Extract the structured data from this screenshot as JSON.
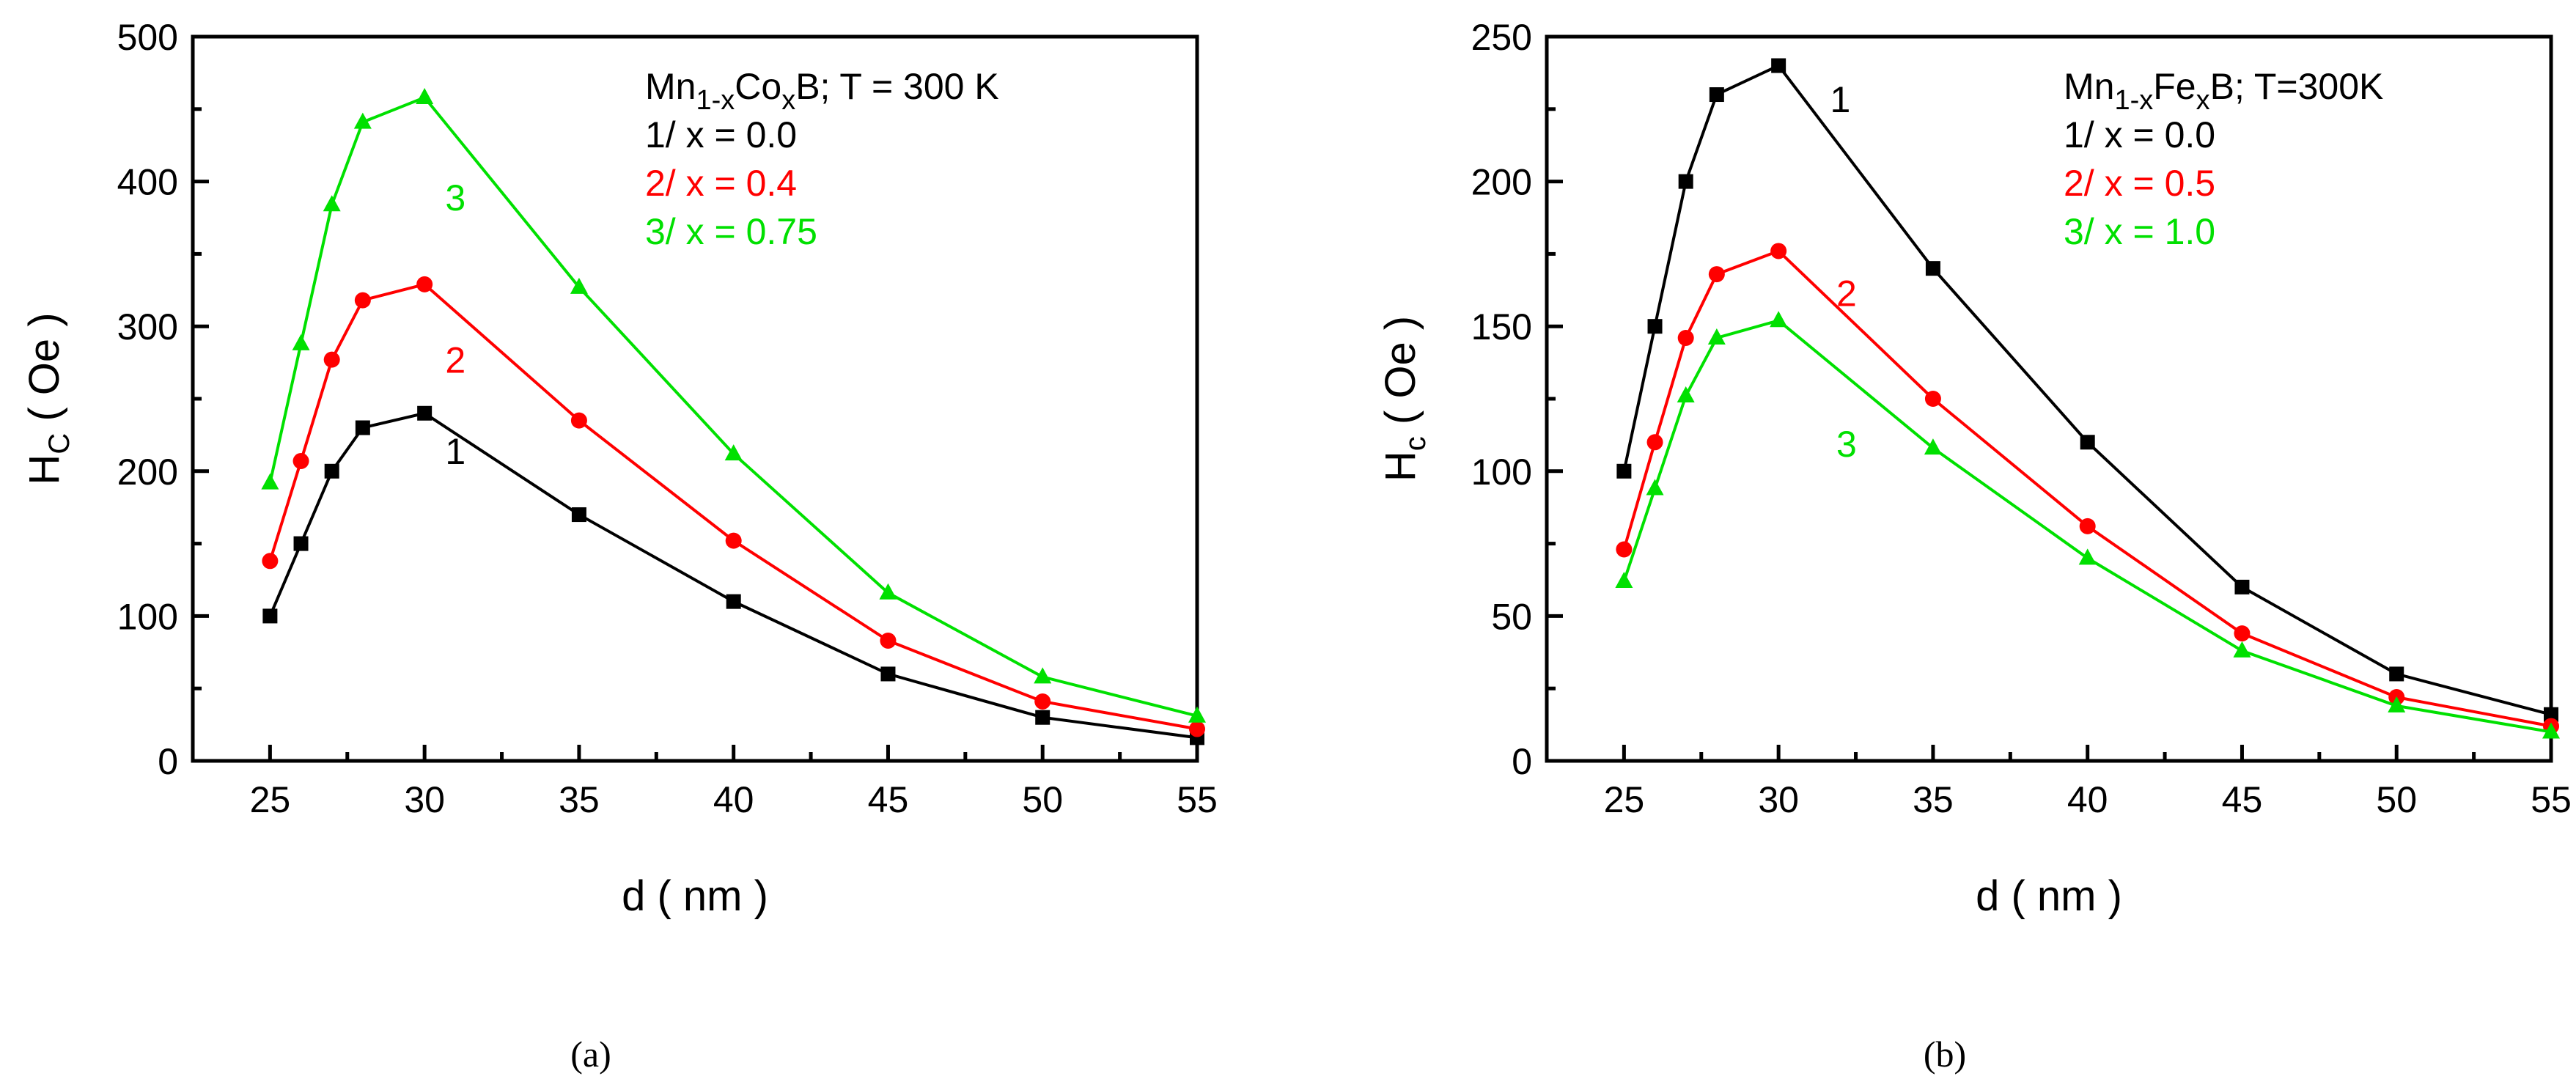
{
  "chart_data": [
    {
      "type": "line",
      "caption": "(a)",
      "xlabel": "d ( nm )",
      "ylabel_main": "H",
      "ylabel_sub": "C",
      "ylabel_rest": " ( Oe )",
      "xlim": [
        22.5,
        55
      ],
      "ylim": [
        0,
        500
      ],
      "xticks": [
        25,
        30,
        35,
        40,
        45,
        50,
        55
      ],
      "yticks": [
        0,
        100,
        200,
        300,
        400,
        500
      ],
      "grid": false,
      "legend_position": "top-right",
      "legend_title": [
        {
          "text": "Mn",
          "sub": false
        },
        {
          "text": "1-x",
          "sub": true
        },
        {
          "text": "Co",
          "sub": false
        },
        {
          "text": "x",
          "sub": true
        },
        {
          "text": "B; T = 300 K",
          "sub": false
        }
      ],
      "legend": [
        {
          "text": "1/ x = 0.0",
          "color": "#000000"
        },
        {
          "text": "2/ x = 0.4",
          "color": "#ff0000"
        },
        {
          "text": "3/ x = 0.75",
          "color": "#00e000"
        }
      ],
      "x": [
        25,
        26,
        27,
        28,
        30,
        35,
        40,
        45,
        50,
        55
      ],
      "series": [
        {
          "label": "1",
          "marker": "square",
          "color": "#000000",
          "values": [
            100,
            150,
            200,
            230,
            240,
            170,
            110,
            60,
            30,
            16
          ],
          "label_at": [
            31,
            205
          ]
        },
        {
          "label": "2",
          "marker": "circle",
          "color": "#ff0000",
          "values": [
            138,
            207,
            277,
            318,
            329,
            235,
            152,
            83,
            41,
            22
          ],
          "label_at": [
            31,
            268
          ]
        },
        {
          "label": "3",
          "marker": "triangle",
          "color": "#00e000",
          "values": [
            192,
            288,
            384,
            441,
            458,
            327,
            212,
            116,
            58,
            31
          ],
          "label_at": [
            31,
            380
          ]
        }
      ]
    },
    {
      "type": "line",
      "caption": "(b)",
      "xlabel": "d ( nm )",
      "ylabel_main": "H",
      "ylabel_sub": "c",
      "ylabel_rest": " ( Oe )",
      "xlim": [
        22.5,
        55
      ],
      "ylim": [
        0,
        250
      ],
      "xticks": [
        25,
        30,
        35,
        40,
        45,
        50,
        55
      ],
      "yticks": [
        0,
        50,
        100,
        150,
        200,
        250
      ],
      "grid": false,
      "legend_position": "top-right",
      "legend_title": [
        {
          "text": "Mn",
          "sub": false
        },
        {
          "text": "1-x",
          "sub": true
        },
        {
          "text": "Fe",
          "sub": false
        },
        {
          "text": "x",
          "sub": true
        },
        {
          "text": "B; T=300K",
          "sub": false
        }
      ],
      "legend": [
        {
          "text": "1/ x = 0.0",
          "color": "#000000"
        },
        {
          "text": "2/ x = 0.5",
          "color": "#ff0000"
        },
        {
          "text": "3/ x = 1.0",
          "color": "#00e000"
        }
      ],
      "x": [
        25,
        26,
        27,
        28,
        30,
        35,
        40,
        45,
        50,
        55
      ],
      "series": [
        {
          "label": "1",
          "marker": "square",
          "color": "#000000",
          "values": [
            100,
            150,
            200,
            230,
            240,
            170,
            110,
            60,
            30,
            16
          ],
          "label_at": [
            32,
            224
          ]
        },
        {
          "label": "2",
          "marker": "circle",
          "color": "#ff0000",
          "values": [
            73,
            110,
            146,
            168,
            176,
            125,
            81,
            44,
            22,
            12
          ],
          "label_at": [
            32.2,
            157
          ]
        },
        {
          "label": "3",
          "marker": "triangle",
          "color": "#00e000",
          "values": [
            62,
            94,
            126,
            146,
            152,
            108,
            70,
            38,
            19,
            10
          ],
          "label_at": [
            32.2,
            105
          ]
        }
      ]
    }
  ]
}
